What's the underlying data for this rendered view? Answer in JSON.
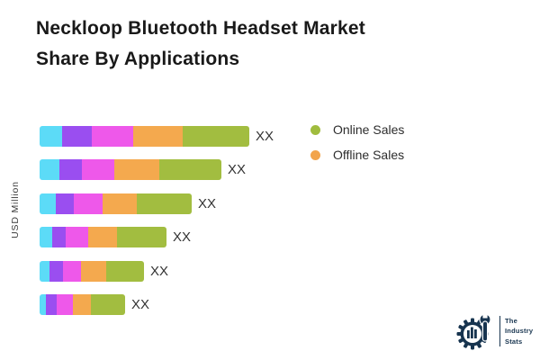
{
  "header": {
    "title_lines": [
      "Neckloop Bluetooth Headset Market",
      "Share By Applications"
    ]
  },
  "chart_data": {
    "type": "bar",
    "orientation": "horizontal",
    "stacked": true,
    "title": "Neckloop Bluetooth Headset Market Share By Applications",
    "ylabel": "USD Million",
    "value_label": "XX",
    "grid": false,
    "legend_position": "top-right",
    "segment_colors": [
      "#5cdbf7",
      "#9a4ef0",
      "#ee58ea",
      "#f4a94e",
      "#a2bd40"
    ],
    "legend": [
      {
        "label": "Online Sales",
        "color": "#a0bc3e"
      },
      {
        "label": "Offline Sales",
        "color": "#f2a44c"
      }
    ],
    "bars": [
      {
        "label": "XX",
        "segments": [
          25,
          33,
          46,
          55,
          74
        ]
      },
      {
        "label": "XX",
        "segments": [
          22,
          25,
          36,
          50,
          69
        ]
      },
      {
        "label": "XX",
        "segments": [
          18,
          20,
          32,
          38,
          61
        ]
      },
      {
        "label": "XX",
        "segments": [
          14,
          15,
          25,
          32,
          55
        ]
      },
      {
        "label": "XX",
        "segments": [
          11,
          15,
          20,
          28,
          42
        ]
      },
      {
        "label": "XX",
        "segments": [
          7,
          12,
          18,
          20,
          38
        ]
      }
    ]
  },
  "logo": {
    "lines": [
      "The",
      "Industry",
      "Stats"
    ],
    "color": "#17344f"
  }
}
